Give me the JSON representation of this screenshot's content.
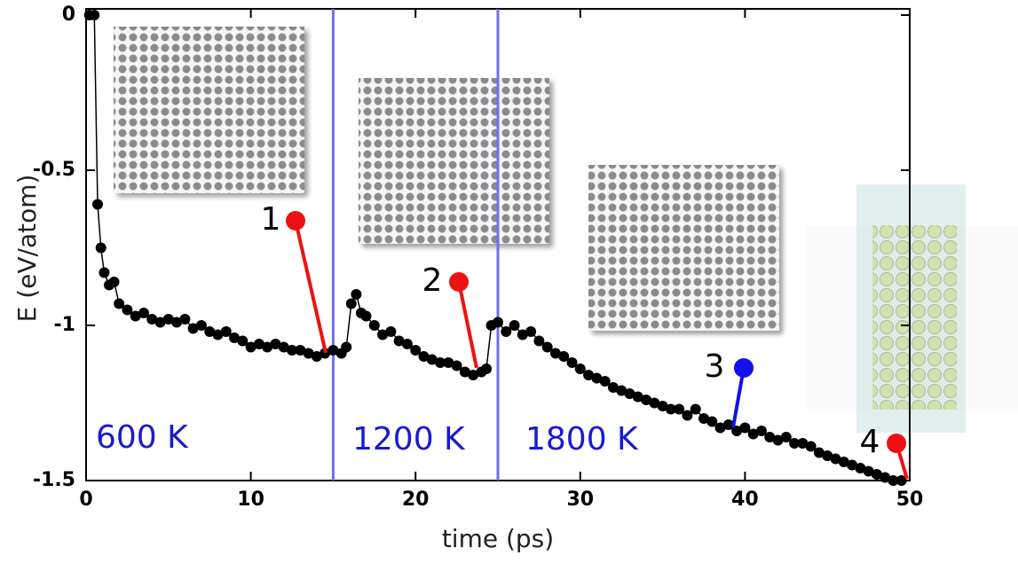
{
  "chart_data": {
    "type": "line",
    "markers": true,
    "color": "#000000",
    "x_label": "time (ps)",
    "y_label": "E (eV/atom)",
    "xlim": [
      0,
      50
    ],
    "ylim": [
      -1.5,
      0.02
    ],
    "xticks": [
      0,
      10,
      20,
      30,
      40,
      50
    ],
    "yticks": [
      0,
      -0.5,
      -1,
      -1.5
    ],
    "vlines": [
      15,
      25
    ],
    "vline_color": "#6f6fe6",
    "temperature_labels": [
      "600 K",
      "1200 K",
      "1800 K"
    ],
    "temperature_color": "#1a1ad0",
    "annotations": [
      {
        "text": "1",
        "color": "#ee1111"
      },
      {
        "text": "2",
        "color": "#ee1111"
      },
      {
        "text": "3",
        "color": "#1111ee"
      },
      {
        "text": "4",
        "color": "#ee1111"
      }
    ],
    "x": [
      0.2,
      0.5,
      0.7,
      0.9,
      1.1,
      1.4,
      1.7,
      2,
      2.5,
      3,
      3.5,
      4,
      4.5,
      5,
      5.5,
      6,
      6.5,
      7,
      7.5,
      8,
      8.5,
      9,
      9.5,
      10,
      10.5,
      11,
      11.5,
      12,
      12.5,
      13,
      13.5,
      14,
      14.5,
      15,
      15.5,
      15.8,
      16.1,
      16.4,
      16.7,
      17,
      17.5,
      18,
      18.5,
      19,
      19.5,
      20,
      20.5,
      21,
      21.5,
      22,
      22.5,
      23,
      23.5,
      24,
      24.3,
      24.6,
      25,
      25.5,
      26,
      26.5,
      27,
      27.5,
      28,
      28.5,
      29,
      29.5,
      30,
      30.5,
      31,
      31.5,
      32,
      32.5,
      33,
      33.5,
      34,
      34.5,
      35,
      35.5,
      36,
      36.5,
      37,
      37.5,
      38,
      38.5,
      39,
      39.5,
      40,
      40.5,
      41,
      41.5,
      42,
      42.5,
      43,
      43.5,
      44,
      44.5,
      45,
      45.5,
      46,
      46.5,
      47,
      47.5,
      48,
      48.5,
      49,
      49.5
    ],
    "values": [
      0,
      0,
      -0.61,
      -0.75,
      -0.83,
      -0.87,
      -0.86,
      -0.93,
      -0.95,
      -0.97,
      -0.96,
      -0.98,
      -0.99,
      -0.98,
      -0.99,
      -0.98,
      -1.01,
      -1.0,
      -1.02,
      -1.03,
      -1.02,
      -1.04,
      -1.05,
      -1.07,
      -1.06,
      -1.07,
      -1.06,
      -1.07,
      -1.08,
      -1.08,
      -1.09,
      -1.1,
      -1.09,
      -1.08,
      -1.09,
      -1.07,
      -0.93,
      -0.9,
      -0.96,
      -0.97,
      -1.0,
      -1.03,
      -1.02,
      -1.05,
      -1.06,
      -1.08,
      -1.1,
      -1.11,
      -1.12,
      -1.12,
      -1.13,
      -1.15,
      -1.16,
      -1.15,
      -1.14,
      -1.0,
      -0.99,
      -1.02,
      -1.0,
      -1.03,
      -1.02,
      -1.05,
      -1.07,
      -1.09,
      -1.1,
      -1.12,
      -1.14,
      -1.16,
      -1.17,
      -1.18,
      -1.2,
      -1.21,
      -1.22,
      -1.23,
      -1.24,
      -1.25,
      -1.26,
      -1.27,
      -1.27,
      -1.29,
      -1.27,
      -1.3,
      -1.31,
      -1.33,
      -1.32,
      -1.34,
      -1.33,
      -1.35,
      -1.34,
      -1.36,
      -1.37,
      -1.36,
      -1.38,
      -1.38,
      -1.39,
      -1.41,
      -1.42,
      -1.43,
      -1.44,
      -1.45,
      -1.46,
      -1.47,
      -1.48,
      -1.49,
      -1.5,
      -1.5
    ]
  }
}
